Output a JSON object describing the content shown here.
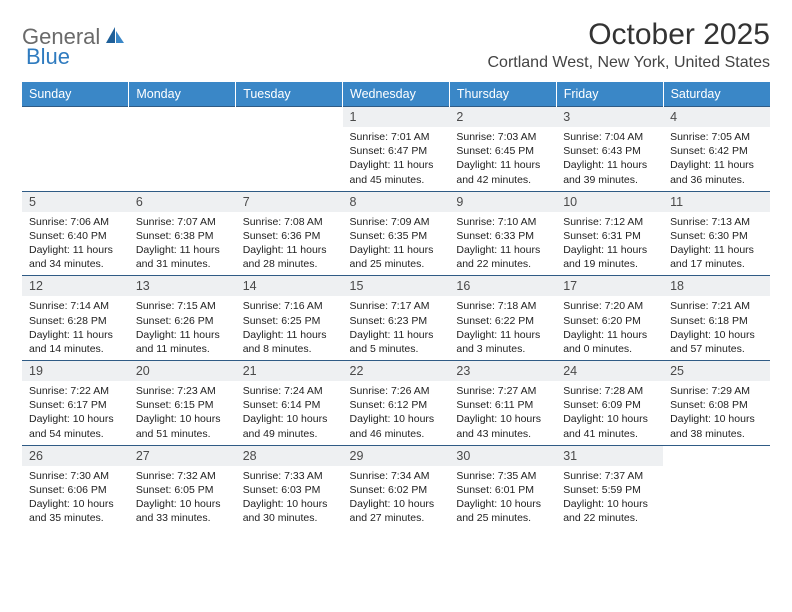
{
  "brand": {
    "part1": "General",
    "part2": "Blue"
  },
  "title": "October 2025",
  "location": "Cortland West, New York, United States",
  "colors": {
    "header_bg": "#3a87c7",
    "rule": "#2f5b85",
    "daynum_bg": "#eef0f2",
    "logo_gray": "#6a6a6a",
    "logo_blue": "#2f7bbf"
  },
  "layout": {
    "cols": 7,
    "rows": 5,
    "first_day_col": 3
  },
  "weekdays": [
    "Sunday",
    "Monday",
    "Tuesday",
    "Wednesday",
    "Thursday",
    "Friday",
    "Saturday"
  ],
  "days": [
    {
      "n": 1,
      "sr": "7:01 AM",
      "ss": "6:47 PM",
      "dl": "11 hours and 45 minutes."
    },
    {
      "n": 2,
      "sr": "7:03 AM",
      "ss": "6:45 PM",
      "dl": "11 hours and 42 minutes."
    },
    {
      "n": 3,
      "sr": "7:04 AM",
      "ss": "6:43 PM",
      "dl": "11 hours and 39 minutes."
    },
    {
      "n": 4,
      "sr": "7:05 AM",
      "ss": "6:42 PM",
      "dl": "11 hours and 36 minutes."
    },
    {
      "n": 5,
      "sr": "7:06 AM",
      "ss": "6:40 PM",
      "dl": "11 hours and 34 minutes."
    },
    {
      "n": 6,
      "sr": "7:07 AM",
      "ss": "6:38 PM",
      "dl": "11 hours and 31 minutes."
    },
    {
      "n": 7,
      "sr": "7:08 AM",
      "ss": "6:36 PM",
      "dl": "11 hours and 28 minutes."
    },
    {
      "n": 8,
      "sr": "7:09 AM",
      "ss": "6:35 PM",
      "dl": "11 hours and 25 minutes."
    },
    {
      "n": 9,
      "sr": "7:10 AM",
      "ss": "6:33 PM",
      "dl": "11 hours and 22 minutes."
    },
    {
      "n": 10,
      "sr": "7:12 AM",
      "ss": "6:31 PM",
      "dl": "11 hours and 19 minutes."
    },
    {
      "n": 11,
      "sr": "7:13 AM",
      "ss": "6:30 PM",
      "dl": "11 hours and 17 minutes."
    },
    {
      "n": 12,
      "sr": "7:14 AM",
      "ss": "6:28 PM",
      "dl": "11 hours and 14 minutes."
    },
    {
      "n": 13,
      "sr": "7:15 AM",
      "ss": "6:26 PM",
      "dl": "11 hours and 11 minutes."
    },
    {
      "n": 14,
      "sr": "7:16 AM",
      "ss": "6:25 PM",
      "dl": "11 hours and 8 minutes."
    },
    {
      "n": 15,
      "sr": "7:17 AM",
      "ss": "6:23 PM",
      "dl": "11 hours and 5 minutes."
    },
    {
      "n": 16,
      "sr": "7:18 AM",
      "ss": "6:22 PM",
      "dl": "11 hours and 3 minutes."
    },
    {
      "n": 17,
      "sr": "7:20 AM",
      "ss": "6:20 PM",
      "dl": "11 hours and 0 minutes."
    },
    {
      "n": 18,
      "sr": "7:21 AM",
      "ss": "6:18 PM",
      "dl": "10 hours and 57 minutes."
    },
    {
      "n": 19,
      "sr": "7:22 AM",
      "ss": "6:17 PM",
      "dl": "10 hours and 54 minutes."
    },
    {
      "n": 20,
      "sr": "7:23 AM",
      "ss": "6:15 PM",
      "dl": "10 hours and 51 minutes."
    },
    {
      "n": 21,
      "sr": "7:24 AM",
      "ss": "6:14 PM",
      "dl": "10 hours and 49 minutes."
    },
    {
      "n": 22,
      "sr": "7:26 AM",
      "ss": "6:12 PM",
      "dl": "10 hours and 46 minutes."
    },
    {
      "n": 23,
      "sr": "7:27 AM",
      "ss": "6:11 PM",
      "dl": "10 hours and 43 minutes."
    },
    {
      "n": 24,
      "sr": "7:28 AM",
      "ss": "6:09 PM",
      "dl": "10 hours and 41 minutes."
    },
    {
      "n": 25,
      "sr": "7:29 AM",
      "ss": "6:08 PM",
      "dl": "10 hours and 38 minutes."
    },
    {
      "n": 26,
      "sr": "7:30 AM",
      "ss": "6:06 PM",
      "dl": "10 hours and 35 minutes."
    },
    {
      "n": 27,
      "sr": "7:32 AM",
      "ss": "6:05 PM",
      "dl": "10 hours and 33 minutes."
    },
    {
      "n": 28,
      "sr": "7:33 AM",
      "ss": "6:03 PM",
      "dl": "10 hours and 30 minutes."
    },
    {
      "n": 29,
      "sr": "7:34 AM",
      "ss": "6:02 PM",
      "dl": "10 hours and 27 minutes."
    },
    {
      "n": 30,
      "sr": "7:35 AM",
      "ss": "6:01 PM",
      "dl": "10 hours and 25 minutes."
    },
    {
      "n": 31,
      "sr": "7:37 AM",
      "ss": "5:59 PM",
      "dl": "10 hours and 22 minutes."
    }
  ],
  "labels": {
    "sunrise": "Sunrise:",
    "sunset": "Sunset:",
    "daylight": "Daylight:"
  }
}
